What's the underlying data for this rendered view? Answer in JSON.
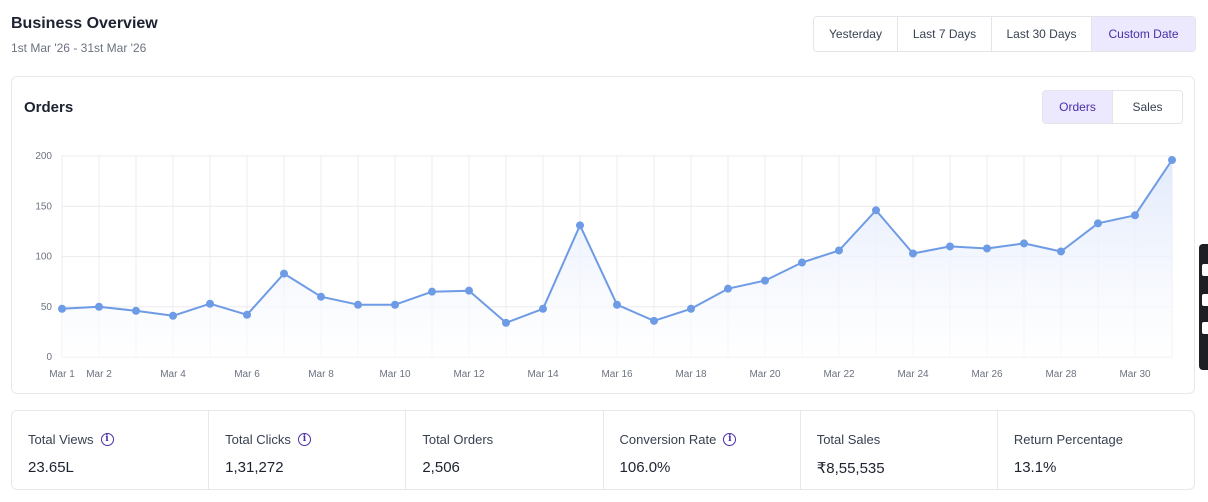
{
  "header": {
    "title": "Business Overview",
    "date_range": "1st Mar '26 - 31st Mar '26"
  },
  "range_options": [
    "Yesterday",
    "Last 7 Days",
    "Last 30 Days",
    "Custom Date"
  ],
  "range_selected": "Custom Date",
  "chart_card": {
    "title": "Orders",
    "toggles": [
      "Orders",
      "Sales"
    ],
    "toggle_selected": "Orders"
  },
  "chart_data": {
    "type": "area",
    "title": "Orders",
    "xlabel": "",
    "ylabel": "",
    "x": [
      "Mar 1",
      "Mar 2",
      "Mar 3",
      "Mar 4",
      "Mar 5",
      "Mar 6",
      "Mar 7",
      "Mar 8",
      "Mar 9",
      "Mar 10",
      "Mar 11",
      "Mar 12",
      "Mar 13",
      "Mar 14",
      "Mar 15",
      "Mar 16",
      "Mar 17",
      "Mar 18",
      "Mar 19",
      "Mar 20",
      "Mar 21",
      "Mar 22",
      "Mar 23",
      "Mar 24",
      "Mar 25",
      "Mar 26",
      "Mar 27",
      "Mar 28",
      "Mar 29",
      "Mar 30",
      "Mar 31"
    ],
    "x_tick_labels": [
      "Mar 1",
      "Mar 2",
      "Mar 4",
      "Mar 6",
      "Mar 8",
      "Mar 10",
      "Mar 12",
      "Mar 14",
      "Mar 16",
      "Mar 18",
      "Mar 20",
      "Mar 22",
      "Mar 24",
      "Mar 26",
      "Mar 28",
      "Mar 30"
    ],
    "y_ticks": [
      0,
      50,
      100,
      150,
      200
    ],
    "ylim": [
      0,
      200
    ],
    "grid": true,
    "legend": "none",
    "series": [
      {
        "values": [
          48,
          50,
          46,
          41,
          53,
          42,
          83,
          60,
          52,
          52,
          65,
          66,
          34,
          48,
          131,
          52,
          36,
          48,
          68,
          76,
          94,
          106,
          146,
          103,
          110,
          108,
          113,
          105,
          133,
          141,
          196
        ]
      }
    ],
    "colors": {
      "line": "#6e9be5",
      "fill_top": "#dfe8fb",
      "fill_bottom": "#ffffff"
    }
  },
  "stats": [
    {
      "label": "Total Views",
      "value": "23.65L",
      "info": true
    },
    {
      "label": "Total Clicks",
      "value": "1,31,272",
      "info": true
    },
    {
      "label": "Total Orders",
      "value": "2,506",
      "info": false
    },
    {
      "label": "Conversion Rate",
      "value": "106.0%",
      "info": true
    },
    {
      "label": "Total Sales",
      "value": "₹8,55,535",
      "info": false
    },
    {
      "label": "Return Percentage",
      "value": "13.1%",
      "info": false
    }
  ],
  "icons": {
    "info": "info-icon"
  },
  "accent_color": "#4a2ea8",
  "accent_bg": "#ece8fd"
}
